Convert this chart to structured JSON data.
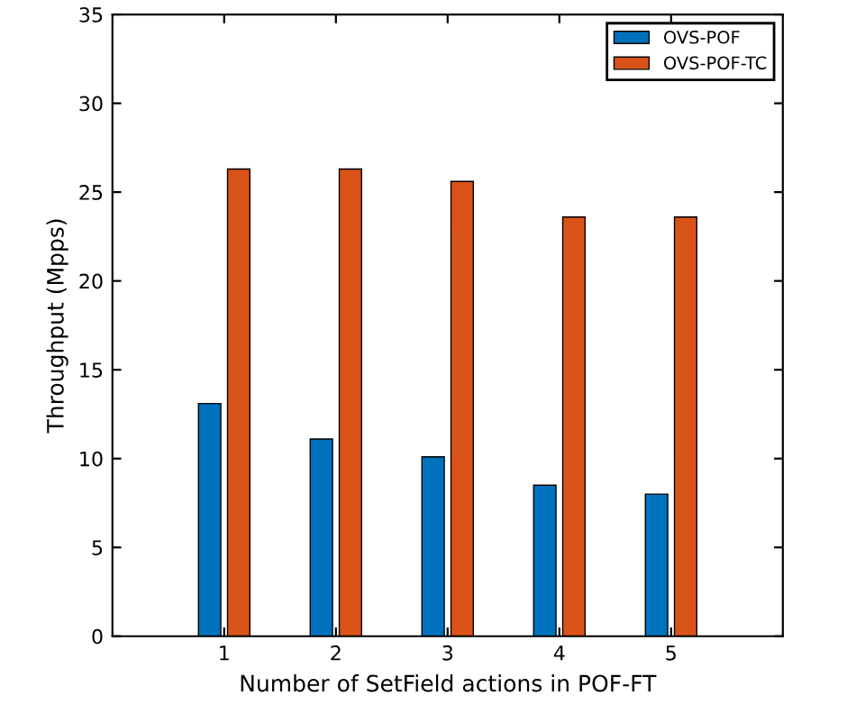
{
  "chart_data": {
    "type": "bar",
    "xlabel": "Number of SetField actions in POF-FT",
    "ylabel": "Throughput (Mpps)",
    "categories": [
      "1",
      "2",
      "3",
      "4",
      "5"
    ],
    "series": [
      {
        "name": "OVS-POF",
        "color": "#0072bd",
        "values": [
          13.1,
          11.1,
          10.1,
          8.5,
          8.0
        ]
      },
      {
        "name": "OVS-POF-TC",
        "color": "#d95319",
        "values": [
          26.3,
          26.3,
          25.6,
          23.6,
          23.6
        ]
      }
    ],
    "ylim": [
      0,
      35
    ],
    "yticks": [
      0,
      5,
      10,
      15,
      20,
      25,
      30,
      35
    ],
    "grid": false,
    "legend": "top right"
  }
}
